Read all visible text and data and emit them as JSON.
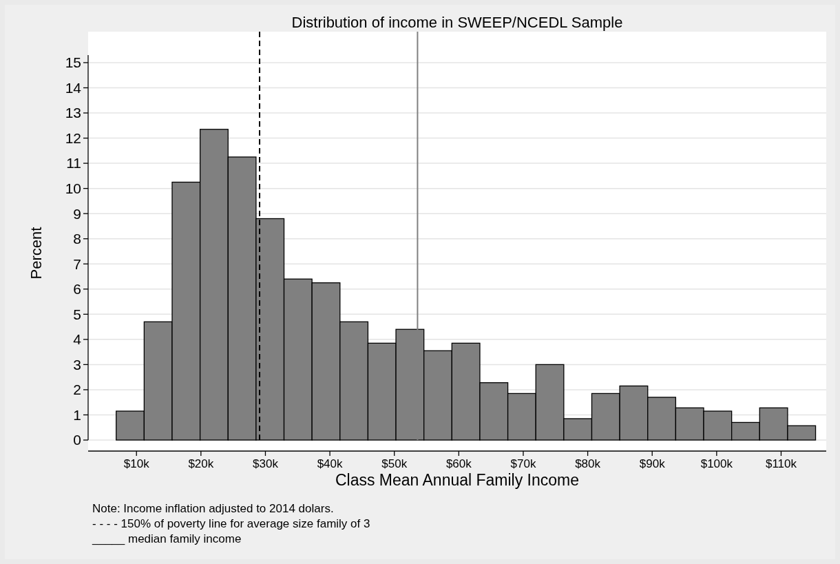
{
  "chart_data": {
    "type": "histogram",
    "title": "Distribution of income in SWEEP/NCEDL Sample",
    "xlabel": "Class Mean Annual Family Income",
    "ylabel": "Percent",
    "bins": [
      6.85,
      11.19,
      15.53,
      19.87,
      24.21,
      28.55,
      32.89,
      37.23,
      41.57,
      45.91,
      50.25,
      54.59,
      58.93,
      63.27,
      67.61,
      71.95,
      76.29,
      80.63,
      84.97,
      89.31,
      93.65,
      97.99,
      102.33,
      106.67,
      111.01,
      115.35
    ],
    "values": [
      1.15,
      4.7,
      10.25,
      12.35,
      11.25,
      8.8,
      6.4,
      6.25,
      4.7,
      3.85,
      4.4,
      3.55,
      3.85,
      2.28,
      1.85,
      3.0,
      0.85,
      1.85,
      2.15,
      1.7,
      1.28,
      1.15,
      0.7,
      1.28,
      0.57
    ],
    "color": "#808080",
    "xlim": [
      2.5,
      117
    ],
    "xticks": [
      {
        "value": 10,
        "label": "$10k"
      },
      {
        "value": 20,
        "label": "$20k"
      },
      {
        "value": 30,
        "label": "$30k"
      },
      {
        "value": 40,
        "label": "$40k"
      },
      {
        "value": 50,
        "label": "$50k"
      },
      {
        "value": 60,
        "label": "$60k"
      },
      {
        "value": 70,
        "label": "$70k"
      },
      {
        "value": 80,
        "label": "$80k"
      },
      {
        "value": 90,
        "label": "$90k"
      },
      {
        "value": 100,
        "label": "$100k"
      },
      {
        "value": 110,
        "label": "$110k"
      }
    ],
    "ylim": [
      0,
      15.3
    ],
    "yticks": [
      0,
      1,
      2,
      3,
      4,
      5,
      6,
      7,
      8,
      9,
      10,
      11,
      12,
      13,
      14,
      15
    ],
    "grid": "y",
    "ref_lines": [
      {
        "axis": "x",
        "value": 29.1,
        "color": "#000000",
        "line_style": "dashed"
      },
      {
        "axis": "x",
        "value": 53.6,
        "color": "#808080",
        "line_style": "solid"
      }
    ],
    "annotations": [
      "Note: Income inflation adjusted to 2014 dolars.",
      "- - - - 150% of poverty line for average size family of 3",
      "_____ median family income"
    ]
  }
}
